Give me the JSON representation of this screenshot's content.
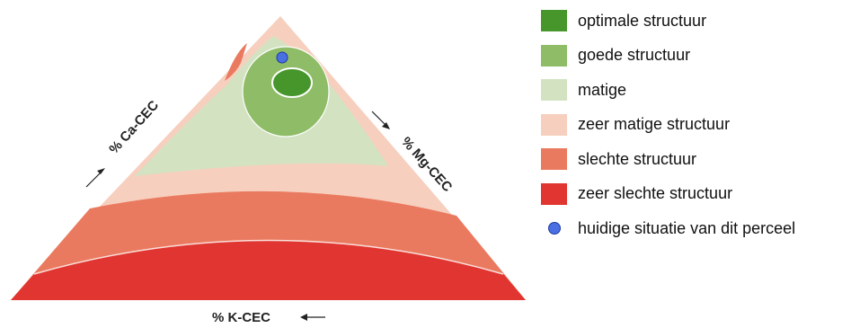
{
  "axes": {
    "ca": "% Ca-CEC",
    "mg": "% Mg-CEC",
    "k": "% K-CEC"
  },
  "legend": [
    {
      "label": "optimale structuur",
      "color": "#46962b"
    },
    {
      "label": "goede structuur",
      "color": "#8fbc66"
    },
    {
      "label": "matige",
      "color": "#d3e3c2"
    },
    {
      "label": "zeer matige structuur",
      "color": "#f7cfbe"
    },
    {
      "label": "slechte structuur",
      "color": "#ea7a5f"
    },
    {
      "label": "zeer slechte structuur",
      "color": "#e03530"
    },
    {
      "label": "huidige situatie van dit perceel",
      "color": "#4a6fe3",
      "marker": "dot"
    }
  ]
}
